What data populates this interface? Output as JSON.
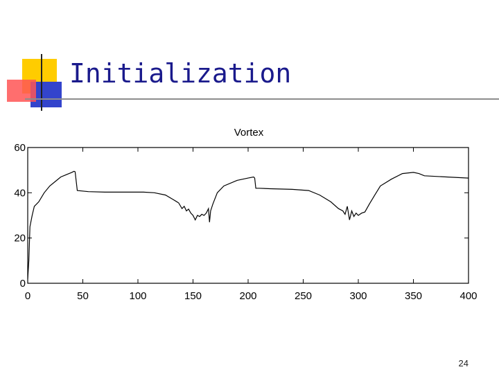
{
  "slide": {
    "title": "Initialization",
    "page_number": "24"
  },
  "colors": {
    "title": "#1a1a8c",
    "accent_yellow": "#ffcc00",
    "accent_blue": "#3333cc",
    "accent_red": "#ff3333"
  },
  "chart_data": {
    "type": "line",
    "title": "Vortex",
    "xlabel": "",
    "ylabel": "",
    "xlim": [
      0,
      400
    ],
    "ylim": [
      0,
      60
    ],
    "xticks": [
      0,
      50,
      100,
      150,
      200,
      250,
      300,
      350,
      400
    ],
    "yticks": [
      0,
      20,
      40,
      60
    ],
    "grid": false,
    "series": [
      {
        "x": [
          0,
          1,
          2,
          4,
          6,
          10,
          15,
          20,
          25,
          30,
          35,
          40,
          42,
          43,
          45,
          55,
          70,
          90,
          105,
          115,
          125,
          132,
          137,
          140,
          142,
          144,
          146,
          148,
          150,
          152,
          154,
          156,
          158,
          160,
          162,
          164,
          165,
          166,
          168,
          172,
          178,
          190,
          200,
          205,
          206,
          207,
          210,
          220,
          240,
          255,
          265,
          275,
          282,
          286,
          288,
          290,
          292,
          294,
          296,
          298,
          300,
          303,
          306,
          310,
          315,
          320,
          330,
          340,
          350,
          355,
          360,
          380,
          400
        ],
        "y": [
          2,
          10,
          25,
          30,
          34,
          36,
          40,
          43,
          45,
          47,
          48,
          49,
          49.5,
          49.3,
          41,
          40.5,
          40.3,
          40.3,
          40.3,
          40,
          39,
          37,
          35.5,
          33,
          34,
          32,
          32.8,
          31,
          30,
          28,
          30,
          29.5,
          30.5,
          30,
          31,
          33,
          27,
          32,
          35,
          40,
          43,
          45.5,
          46.5,
          47,
          46.5,
          42,
          42,
          41.8,
          41.5,
          41,
          39,
          36,
          33,
          32,
          30.5,
          34,
          28,
          32,
          29.5,
          31,
          30,
          31,
          31.5,
          35,
          39,
          43,
          46,
          48.5,
          49,
          48.5,
          47.5,
          47,
          46.5
        ]
      }
    ]
  }
}
